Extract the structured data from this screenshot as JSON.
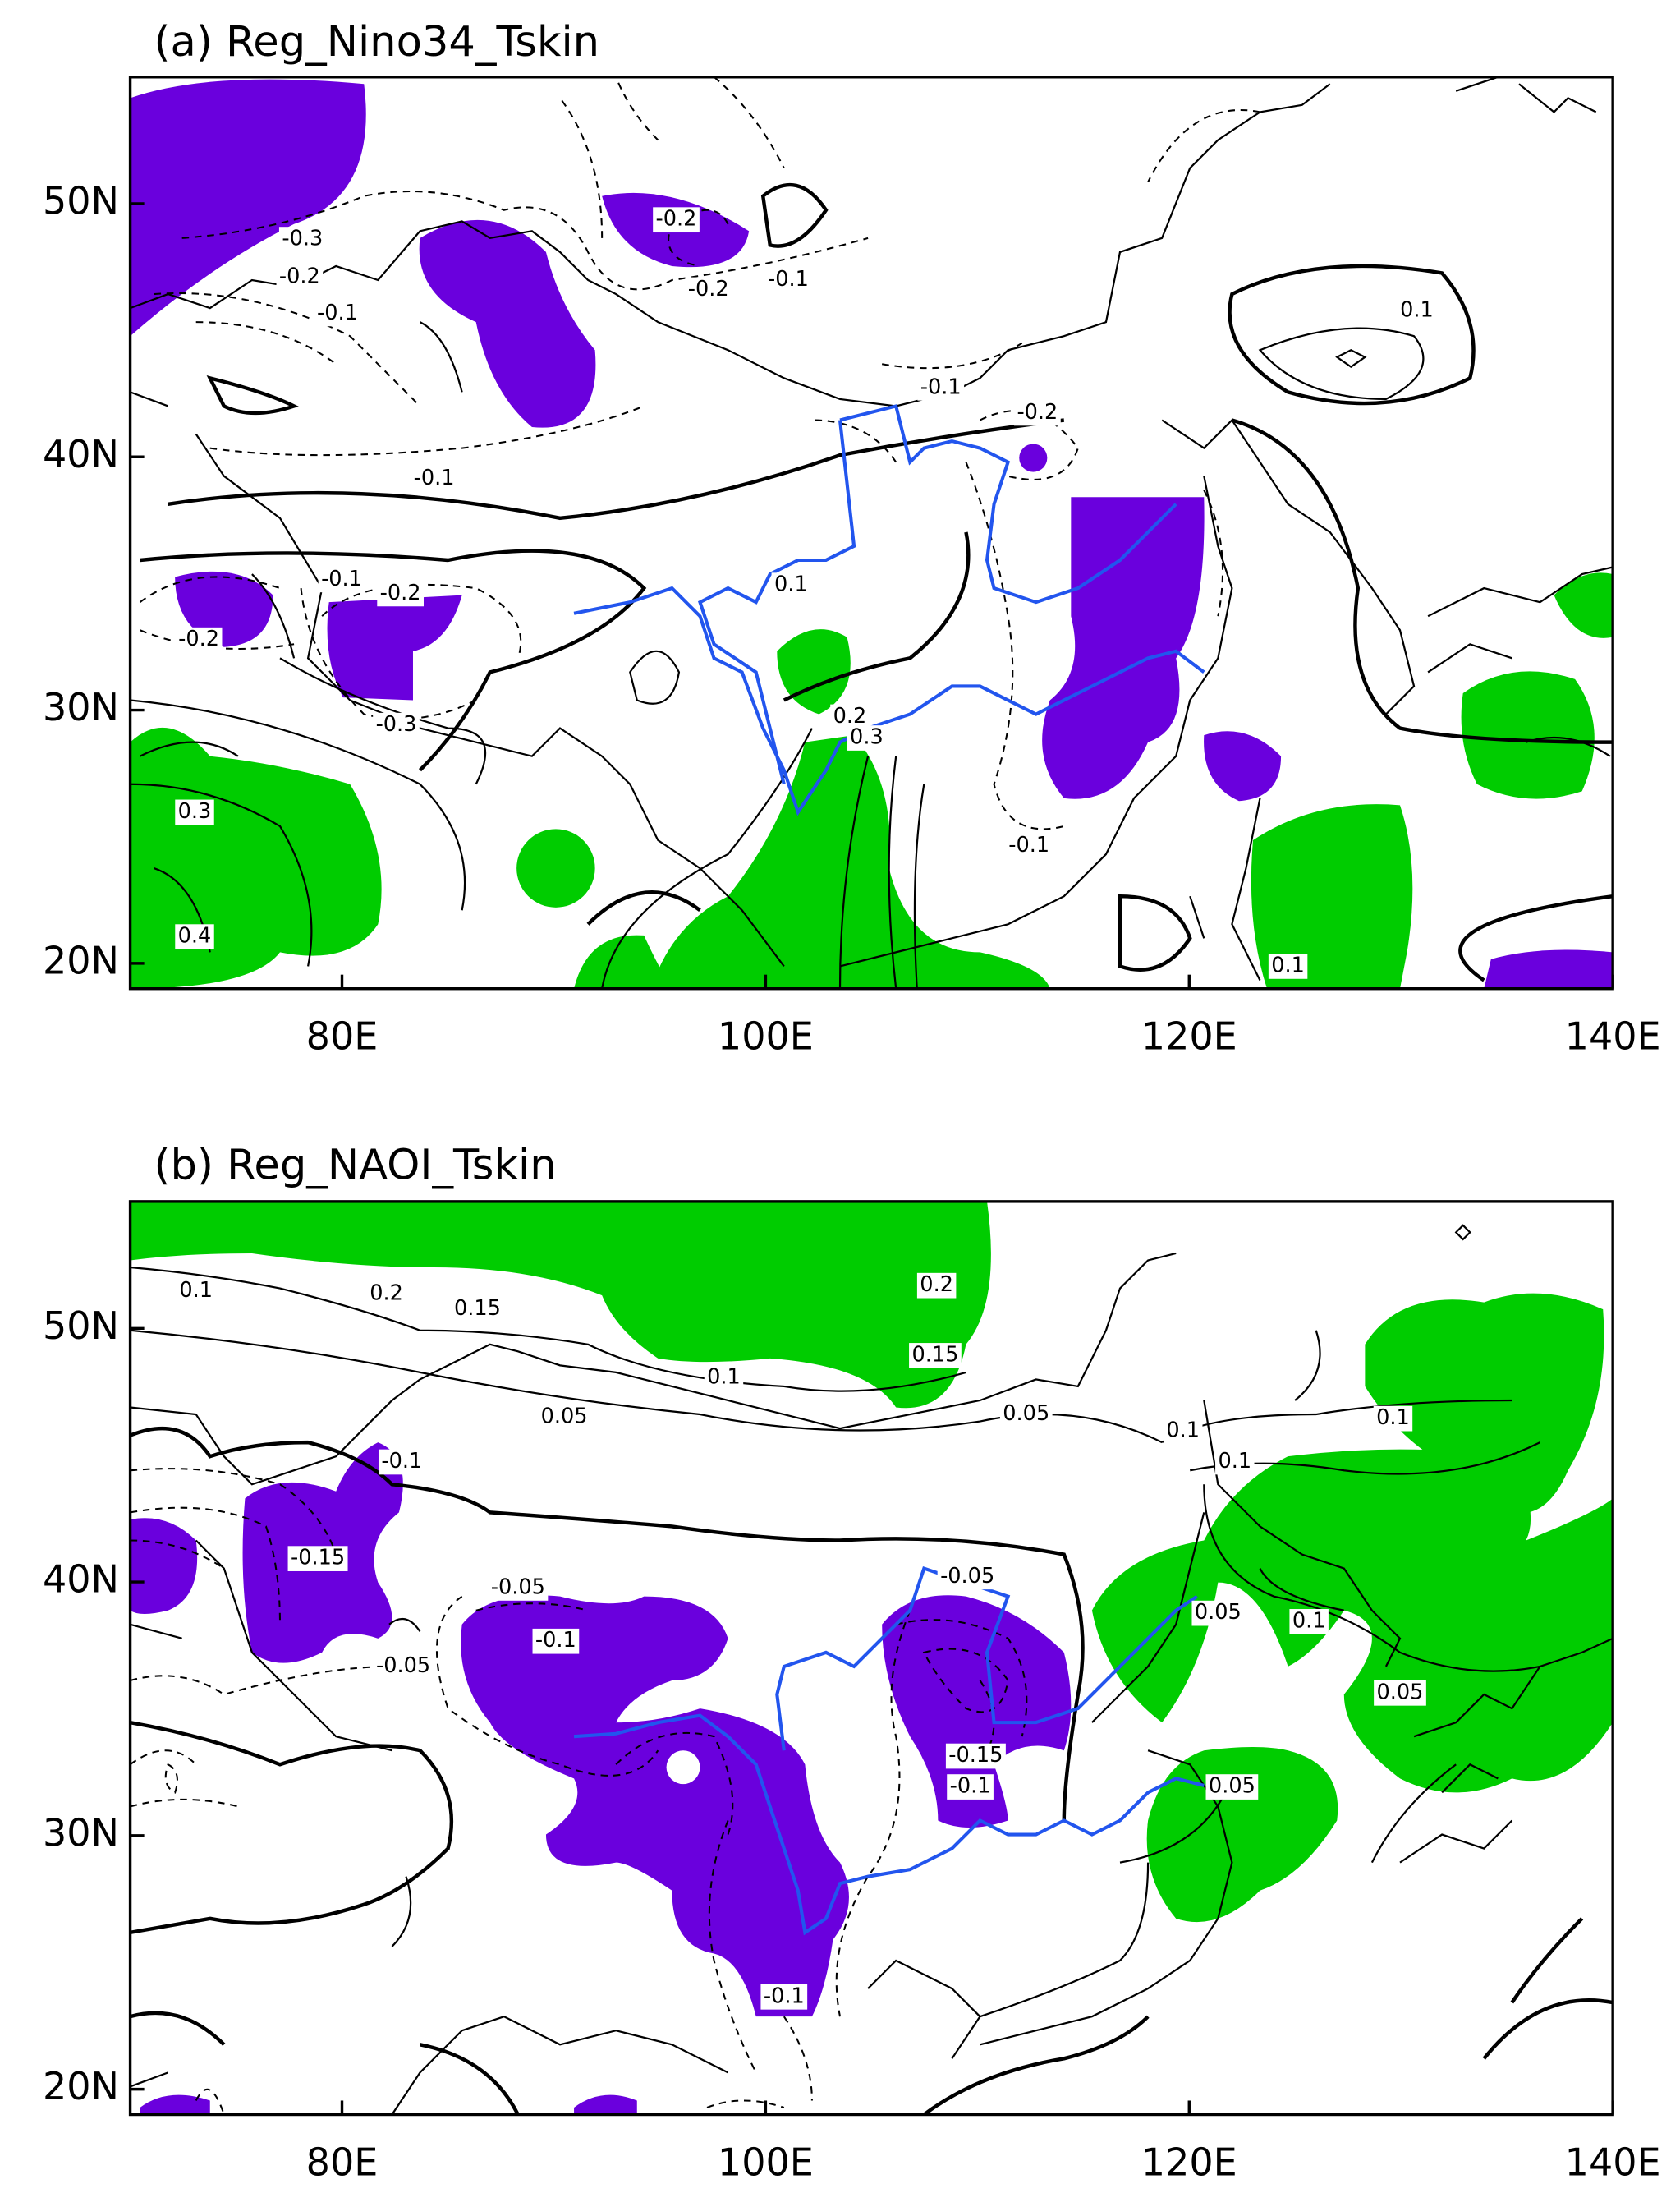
{
  "panels": [
    {
      "title": "(a) Reg_Nino34_Tskin",
      "xlim": [
        70,
        140
      ],
      "ylim": [
        19,
        55
      ],
      "xticks": [
        {
          "value": 80,
          "label": "80E"
        },
        {
          "value": 100,
          "label": "100E"
        },
        {
          "value": 120,
          "label": "120E"
        },
        {
          "value": 140,
          "label": "140E"
        }
      ],
      "yticks": [
        {
          "value": 20,
          "label": "20N"
        },
        {
          "value": 30,
          "label": "30N"
        },
        {
          "value": 40,
          "label": "40N"
        },
        {
          "value": 50,
          "label": "50N"
        }
      ],
      "contour_labels": [
        "-0.3",
        "-0.2",
        "-0.2",
        "-0.1",
        "-0.2",
        "-0.1",
        "0.1",
        "-0.1",
        "-0.2",
        "-0.1",
        "-0.1",
        "-0.2",
        "-0.2",
        "-0.3",
        "0.1",
        "0.2",
        "0.3",
        "-0.1",
        "0.3",
        "0.4",
        "0.1"
      ]
    },
    {
      "title": "(b) Reg_NAOI_Tskin",
      "xlim": [
        70,
        140
      ],
      "ylim": [
        19,
        55
      ],
      "xticks": [
        {
          "value": 80,
          "label": "80E"
        },
        {
          "value": 100,
          "label": "100E"
        },
        {
          "value": 120,
          "label": "120E"
        },
        {
          "value": 140,
          "label": "140E"
        }
      ],
      "yticks": [
        {
          "value": 20,
          "label": "20N"
        },
        {
          "value": 30,
          "label": "30N"
        },
        {
          "value": 40,
          "label": "40N"
        },
        {
          "value": 50,
          "label": "50N"
        }
      ],
      "contour_labels": [
        "0.1",
        "0.2",
        "0.15",
        "0.2",
        "0.15",
        "0.1",
        "0.05",
        "0.05",
        "0.1",
        "0.1",
        "0.1",
        "-0.1",
        "-0.15",
        "-0.05",
        "-0.05",
        "-0.1",
        "-0.05",
        "0.05",
        "0.1",
        "0.05",
        "-0.15",
        "-0.1",
        "0.05",
        "-0.1"
      ]
    }
  ]
}
